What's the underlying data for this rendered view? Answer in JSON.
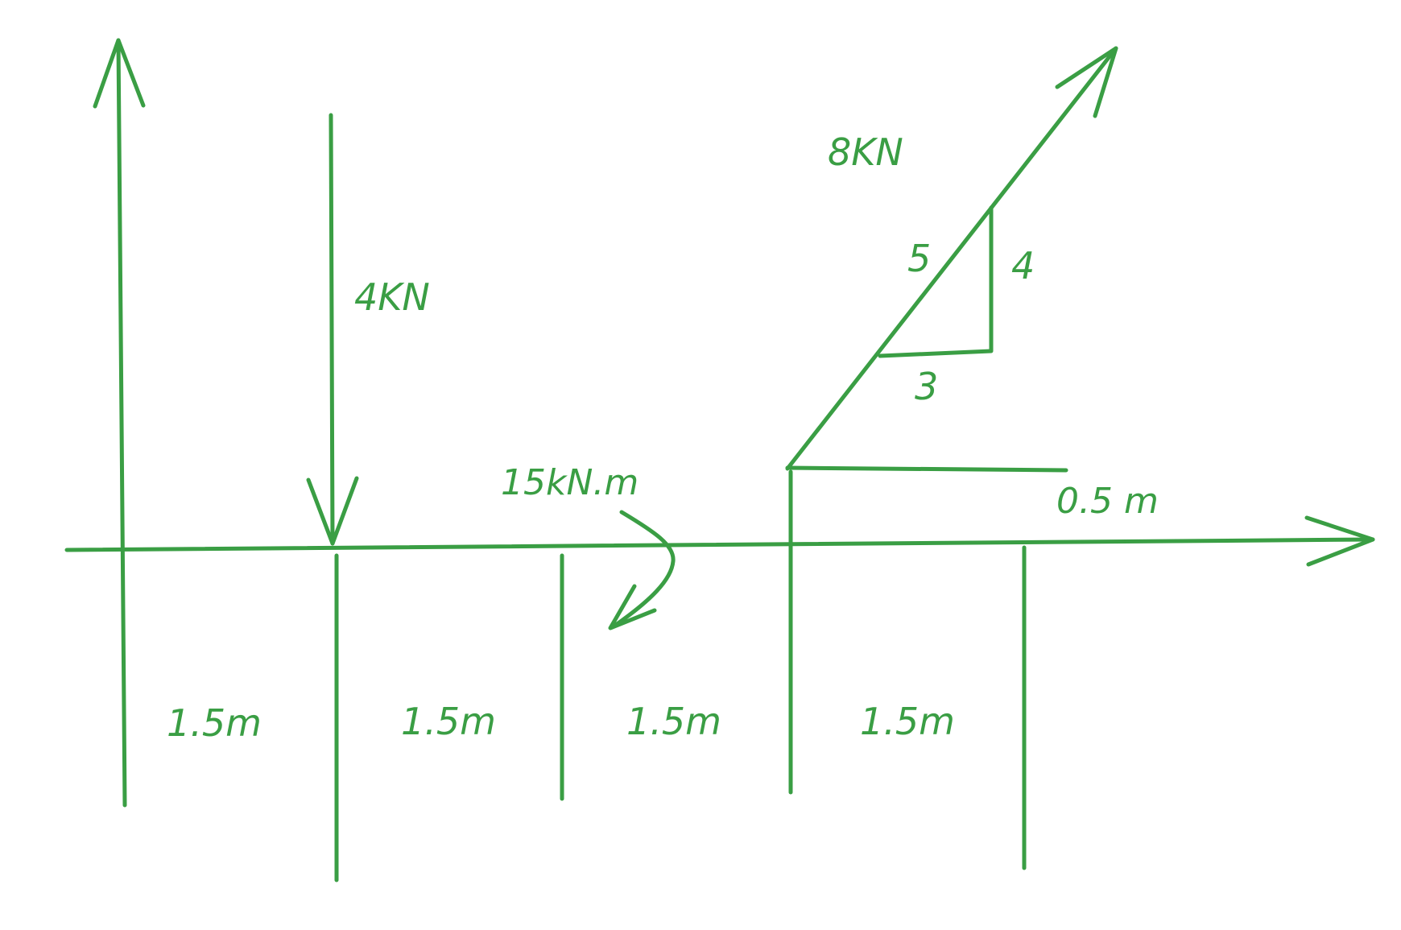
{
  "diagram": {
    "color": "#3a9e44",
    "loads": {
      "point_load": "4KN",
      "inclined_load": "8KN",
      "moment": "15kN.m"
    },
    "slope_triangle": {
      "hypotenuse": "5",
      "rise": "4",
      "run": "3"
    },
    "offset": "0.5 m",
    "spans": [
      "1.5m",
      "1.5m",
      "1.5m",
      "1.5m"
    ]
  }
}
